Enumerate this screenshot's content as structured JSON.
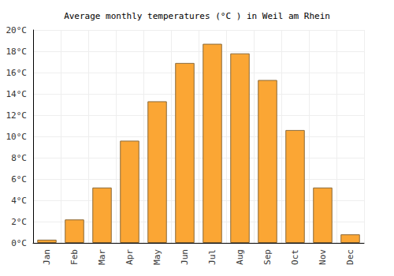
{
  "chart_data": {
    "type": "bar",
    "title": "Average monthly temperatures (°C ) in Weil am Rhein",
    "categories": [
      "Jan",
      "Feb",
      "Mar",
      "Apr",
      "May",
      "Jun",
      "Jul",
      "Aug",
      "Sep",
      "Oct",
      "Nov",
      "Dec"
    ],
    "values": [
      0.3,
      2.2,
      5.2,
      9.6,
      13.3,
      16.9,
      18.7,
      17.8,
      15.3,
      10.6,
      5.2,
      0.8
    ],
    "color": "#fba634",
    "ylim": [
      0,
      20
    ],
    "yticks": [
      {
        "value": 0,
        "label": "0°C"
      },
      {
        "value": 2,
        "label": "2°C"
      },
      {
        "value": 4,
        "label": "4°C"
      },
      {
        "value": 6,
        "label": "6°C"
      },
      {
        "value": 8,
        "label": "8°C"
      },
      {
        "value": 10,
        "label": "10°C"
      },
      {
        "value": 12,
        "label": "12°C"
      },
      {
        "value": 14,
        "label": "14°C"
      },
      {
        "value": 16,
        "label": "16°C"
      },
      {
        "value": 18,
        "label": "18°C"
      },
      {
        "value": 20,
        "label": "20°C"
      }
    ],
    "grid": true
  }
}
